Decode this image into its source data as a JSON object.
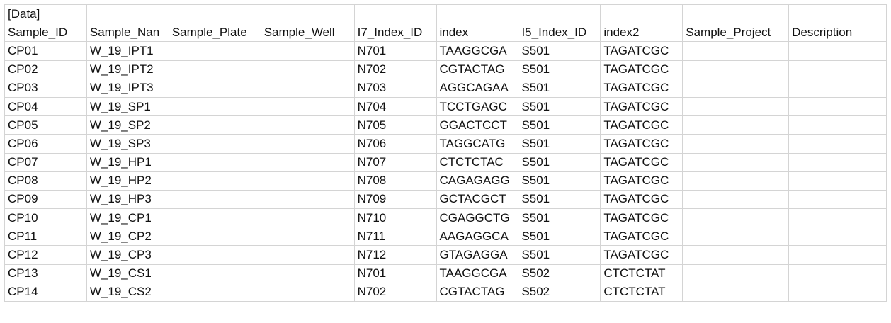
{
  "section_header": "[Data]",
  "columns": [
    "Sample_ID",
    "Sample_Nan",
    "Sample_Plate",
    "Sample_Well",
    "I7_Index_ID",
    "index",
    "I5_Index_ID",
    "index2",
    "Sample_Project",
    "Description"
  ],
  "rows": [
    [
      "CP01",
      "W_19_IPT1",
      "",
      "",
      "N701",
      "TAAGGCGA",
      "S501",
      "TAGATCGC",
      "",
      ""
    ],
    [
      "CP02",
      "W_19_IPT2",
      "",
      "",
      "N702",
      "CGTACTAG",
      "S501",
      "TAGATCGC",
      "",
      ""
    ],
    [
      "CP03",
      "W_19_IPT3",
      "",
      "",
      "N703",
      "AGGCAGAA",
      "S501",
      "TAGATCGC",
      "",
      ""
    ],
    [
      "CP04",
      "W_19_SP1",
      "",
      "",
      "N704",
      "TCCTGAGC",
      "S501",
      "TAGATCGC",
      "",
      ""
    ],
    [
      "CP05",
      "W_19_SP2",
      "",
      "",
      "N705",
      "GGACTCCT",
      "S501",
      "TAGATCGC",
      "",
      ""
    ],
    [
      "CP06",
      "W_19_SP3",
      "",
      "",
      "N706",
      "TAGGCATG",
      "S501",
      "TAGATCGC",
      "",
      ""
    ],
    [
      "CP07",
      "W_19_HP1",
      "",
      "",
      "N707",
      "CTCTCTAC",
      "S501",
      "TAGATCGC",
      "",
      ""
    ],
    [
      "CP08",
      "W_19_HP2",
      "",
      "",
      "N708",
      "CAGAGAGG",
      "S501",
      "TAGATCGC",
      "",
      ""
    ],
    [
      "CP09",
      "W_19_HP3",
      "",
      "",
      "N709",
      "GCTACGCT",
      "S501",
      "TAGATCGC",
      "",
      ""
    ],
    [
      "CP10",
      "W_19_CP1",
      "",
      "",
      "N710",
      "CGAGGCTG",
      "S501",
      "TAGATCGC",
      "",
      ""
    ],
    [
      "CP11",
      "W_19_CP2",
      "",
      "",
      "N711",
      "AAGAGGCA",
      "S501",
      "TAGATCGC",
      "",
      ""
    ],
    [
      "CP12",
      "W_19_CP3",
      "",
      "",
      "N712",
      "GTAGAGGA",
      "S501",
      "TAGATCGC",
      "",
      ""
    ],
    [
      "CP13",
      "W_19_CS1",
      "",
      "",
      "N701",
      "TAAGGCGA",
      "S502",
      "CTCTCTAT",
      "",
      ""
    ],
    [
      "CP14",
      "W_19_CS2",
      "",
      "",
      "N702",
      "CGTACTAG",
      "S502",
      "CTCTCTAT",
      "",
      ""
    ]
  ]
}
